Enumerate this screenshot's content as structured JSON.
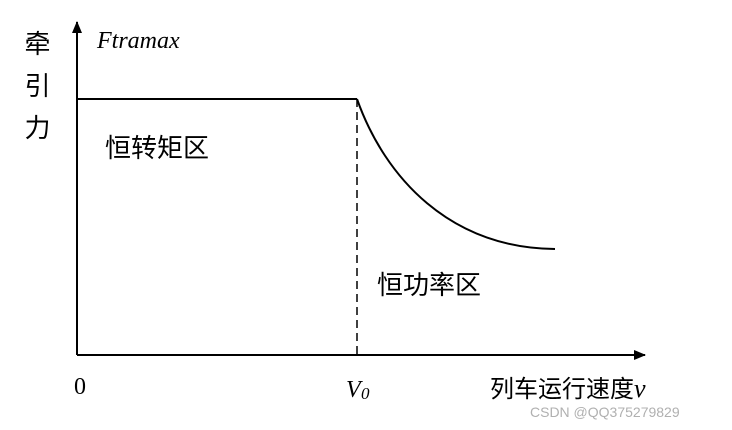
{
  "y_axis": {
    "label": "牵引力",
    "max_label": "Ftramax"
  },
  "regions": {
    "constant_torque": "恒转矩区",
    "constant_power": "恒功率区"
  },
  "x_axis": {
    "origin": "0",
    "v0": {
      "main": "V",
      "sub": "0"
    },
    "label": {
      "text": "列车运行速度",
      "var": "v"
    }
  },
  "watermark": "CSDN @QQ375279829"
}
